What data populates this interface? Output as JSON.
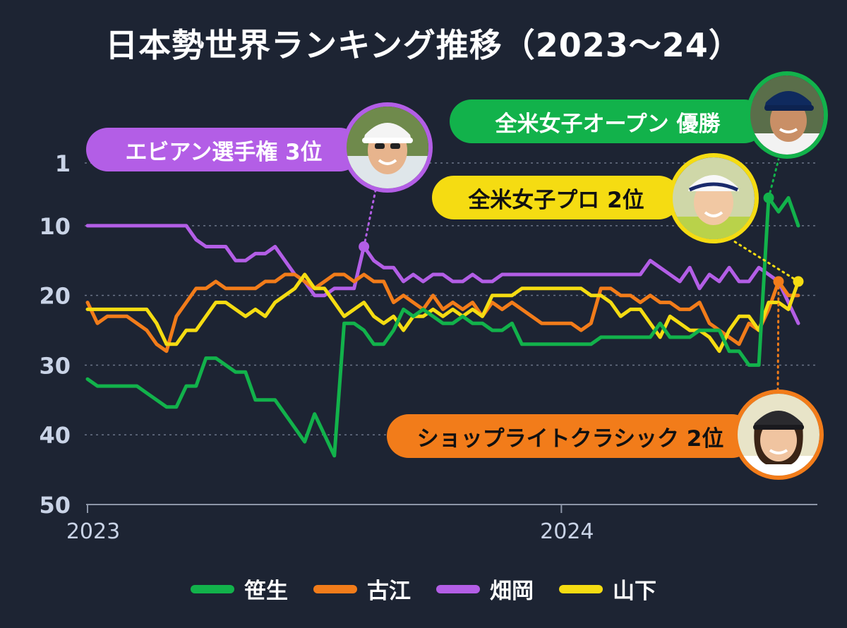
{
  "title": "日本勢世界ランキング推移（2023～24）",
  "chart_data": {
    "type": "line",
    "y_axis": {
      "ticks": [
        1,
        10,
        20,
        30,
        40,
        50
      ],
      "range": [
        1,
        50
      ],
      "inverted": true,
      "grid": "dotted"
    },
    "x_axis": {
      "ticks": [
        "2023",
        "2024"
      ],
      "range": [
        "2023-01",
        "2024-07"
      ]
    },
    "series": [
      {
        "name": "笹生",
        "color": "#12b24b",
        "values": [
          [
            0,
            32
          ],
          [
            1,
            33
          ],
          [
            2,
            33
          ],
          [
            3,
            33
          ],
          [
            4,
            33
          ],
          [
            5,
            33
          ],
          [
            6,
            34
          ],
          [
            7,
            35
          ],
          [
            8,
            36
          ],
          [
            9,
            36
          ],
          [
            10,
            33
          ],
          [
            11,
            33
          ],
          [
            12,
            29
          ],
          [
            13,
            29
          ],
          [
            14,
            30
          ],
          [
            15,
            31
          ],
          [
            16,
            31
          ],
          [
            17,
            35
          ],
          [
            18,
            35
          ],
          [
            19,
            35
          ],
          [
            20,
            37
          ],
          [
            21,
            39
          ],
          [
            22,
            41
          ],
          [
            23,
            37
          ],
          [
            24,
            40
          ],
          [
            25,
            43
          ],
          [
            26,
            24
          ],
          [
            27,
            24
          ],
          [
            28,
            25
          ],
          [
            29,
            27
          ],
          [
            30,
            27
          ],
          [
            31,
            25
          ],
          [
            32,
            22
          ],
          [
            33,
            23
          ],
          [
            34,
            22
          ],
          [
            35,
            23
          ],
          [
            36,
            24
          ],
          [
            37,
            24
          ],
          [
            38,
            23
          ],
          [
            39,
            24
          ],
          [
            40,
            24
          ],
          [
            41,
            25
          ],
          [
            42,
            25
          ],
          [
            43,
            24
          ],
          [
            44,
            27
          ],
          [
            45,
            27
          ],
          [
            46,
            27
          ],
          [
            47,
            27
          ],
          [
            48,
            27
          ],
          [
            49,
            27
          ],
          [
            50,
            27
          ],
          [
            51,
            27
          ],
          [
            52,
            26
          ],
          [
            53,
            26
          ],
          [
            54,
            26
          ],
          [
            55,
            26
          ],
          [
            56,
            26
          ],
          [
            57,
            26
          ],
          [
            58,
            24
          ],
          [
            59,
            26
          ],
          [
            60,
            26
          ],
          [
            61,
            26
          ],
          [
            62,
            25
          ],
          [
            63,
            25
          ],
          [
            64,
            25
          ],
          [
            65,
            28
          ],
          [
            66,
            28
          ],
          [
            67,
            30
          ],
          [
            68,
            30
          ],
          [
            69,
            6
          ],
          [
            70,
            8
          ],
          [
            71,
            6
          ],
          [
            72,
            10
          ]
        ]
      },
      {
        "name": "古江",
        "color": "#f27c1a",
        "values": [
          [
            0,
            21
          ],
          [
            1,
            24
          ],
          [
            2,
            23
          ],
          [
            3,
            23
          ],
          [
            4,
            23
          ],
          [
            5,
            24
          ],
          [
            6,
            25
          ],
          [
            7,
            27
          ],
          [
            8,
            28
          ],
          [
            9,
            23
          ],
          [
            10,
            21
          ],
          [
            11,
            19
          ],
          [
            12,
            19
          ],
          [
            13,
            18
          ],
          [
            14,
            19
          ],
          [
            15,
            19
          ],
          [
            16,
            19
          ],
          [
            17,
            19
          ],
          [
            18,
            18
          ],
          [
            19,
            18
          ],
          [
            20,
            17
          ],
          [
            21,
            17
          ],
          [
            22,
            18
          ],
          [
            23,
            19
          ],
          [
            24,
            18
          ],
          [
            25,
            17
          ],
          [
            26,
            17
          ],
          [
            27,
            18
          ],
          [
            28,
            17
          ],
          [
            29,
            18
          ],
          [
            30,
            18
          ],
          [
            31,
            21
          ],
          [
            32,
            20
          ],
          [
            33,
            21
          ],
          [
            34,
            22
          ],
          [
            35,
            20
          ],
          [
            36,
            22
          ],
          [
            37,
            21
          ],
          [
            38,
            22
          ],
          [
            39,
            21
          ],
          [
            40,
            23
          ],
          [
            41,
            21
          ],
          [
            42,
            22
          ],
          [
            43,
            21
          ],
          [
            44,
            22
          ],
          [
            45,
            23
          ],
          [
            46,
            24
          ],
          [
            47,
            24
          ],
          [
            48,
            24
          ],
          [
            49,
            24
          ],
          [
            50,
            25
          ],
          [
            51,
            24
          ],
          [
            52,
            19
          ],
          [
            53,
            19
          ],
          [
            54,
            20
          ],
          [
            55,
            20
          ],
          [
            56,
            21
          ],
          [
            57,
            20
          ],
          [
            58,
            21
          ],
          [
            59,
            21
          ],
          [
            60,
            22
          ],
          [
            61,
            22
          ],
          [
            62,
            21
          ],
          [
            63,
            24
          ],
          [
            64,
            25
          ],
          [
            65,
            26
          ],
          [
            66,
            27
          ],
          [
            67,
            24
          ],
          [
            68,
            25
          ],
          [
            69,
            22
          ],
          [
            70,
            18
          ],
          [
            71,
            20
          ],
          [
            72,
            20
          ]
        ]
      },
      {
        "name": "畑岡",
        "color": "#b35ee6",
        "values": [
          [
            0,
            10
          ],
          [
            1,
            10
          ],
          [
            2,
            10
          ],
          [
            3,
            10
          ],
          [
            4,
            10
          ],
          [
            5,
            10
          ],
          [
            6,
            10
          ],
          [
            7,
            10
          ],
          [
            8,
            10
          ],
          [
            9,
            10
          ],
          [
            10,
            10
          ],
          [
            11,
            12
          ],
          [
            12,
            13
          ],
          [
            13,
            13
          ],
          [
            14,
            13
          ],
          [
            15,
            15
          ],
          [
            16,
            15
          ],
          [
            17,
            14
          ],
          [
            18,
            14
          ],
          [
            19,
            13
          ],
          [
            20,
            15
          ],
          [
            21,
            17
          ],
          [
            22,
            18
          ],
          [
            23,
            20
          ],
          [
            24,
            20
          ],
          [
            25,
            19
          ],
          [
            26,
            19
          ],
          [
            27,
            19
          ],
          [
            28,
            13
          ],
          [
            29,
            15
          ],
          [
            30,
            16
          ],
          [
            31,
            16
          ],
          [
            32,
            18
          ],
          [
            33,
            17
          ],
          [
            34,
            18
          ],
          [
            35,
            17
          ],
          [
            36,
            17
          ],
          [
            37,
            18
          ],
          [
            38,
            18
          ],
          [
            39,
            17
          ],
          [
            40,
            18
          ],
          [
            41,
            18
          ],
          [
            42,
            17
          ],
          [
            43,
            17
          ],
          [
            44,
            17
          ],
          [
            45,
            17
          ],
          [
            46,
            17
          ],
          [
            47,
            17
          ],
          [
            48,
            17
          ],
          [
            49,
            17
          ],
          [
            50,
            17
          ],
          [
            51,
            17
          ],
          [
            52,
            17
          ],
          [
            53,
            17
          ],
          [
            54,
            17
          ],
          [
            55,
            17
          ],
          [
            56,
            17
          ],
          [
            57,
            15
          ],
          [
            58,
            16
          ],
          [
            59,
            17
          ],
          [
            60,
            18
          ],
          [
            61,
            16
          ],
          [
            62,
            19
          ],
          [
            63,
            17
          ],
          [
            64,
            18
          ],
          [
            65,
            16
          ],
          [
            66,
            18
          ],
          [
            67,
            18
          ],
          [
            68,
            16
          ],
          [
            69,
            17
          ],
          [
            70,
            18
          ],
          [
            71,
            21
          ],
          [
            72,
            24
          ]
        ]
      },
      {
        "name": "山下",
        "color": "#f5dc12",
        "values": [
          [
            0,
            22
          ],
          [
            1,
            22
          ],
          [
            2,
            22
          ],
          [
            3,
            22
          ],
          [
            4,
            22
          ],
          [
            5,
            22
          ],
          [
            6,
            22
          ],
          [
            7,
            24
          ],
          [
            8,
            27
          ],
          [
            9,
            27
          ],
          [
            10,
            25
          ],
          [
            11,
            25
          ],
          [
            12,
            23
          ],
          [
            13,
            21
          ],
          [
            14,
            21
          ],
          [
            15,
            22
          ],
          [
            16,
            23
          ],
          [
            17,
            22
          ],
          [
            18,
            23
          ],
          [
            19,
            21
          ],
          [
            20,
            20
          ],
          [
            21,
            19
          ],
          [
            22,
            17
          ],
          [
            23,
            19
          ],
          [
            24,
            19
          ],
          [
            25,
            21
          ],
          [
            26,
            23
          ],
          [
            27,
            22
          ],
          [
            28,
            21
          ],
          [
            29,
            23
          ],
          [
            30,
            24
          ],
          [
            31,
            23
          ],
          [
            32,
            25
          ],
          [
            33,
            23
          ],
          [
            34,
            23
          ],
          [
            35,
            22
          ],
          [
            36,
            23
          ],
          [
            37,
            22
          ],
          [
            38,
            23
          ],
          [
            39,
            22
          ],
          [
            40,
            23
          ],
          [
            41,
            20
          ],
          [
            42,
            20
          ],
          [
            43,
            20
          ],
          [
            44,
            19
          ],
          [
            45,
            19
          ],
          [
            46,
            19
          ],
          [
            47,
            19
          ],
          [
            48,
            19
          ],
          [
            49,
            19
          ],
          [
            50,
            19
          ],
          [
            51,
            20
          ],
          [
            52,
            20
          ],
          [
            53,
            21
          ],
          [
            54,
            23
          ],
          [
            55,
            22
          ],
          [
            56,
            22
          ],
          [
            57,
            24
          ],
          [
            58,
            26
          ],
          [
            59,
            23
          ],
          [
            60,
            24
          ],
          [
            61,
            25
          ],
          [
            62,
            25
          ],
          [
            63,
            26
          ],
          [
            64,
            28
          ],
          [
            65,
            25
          ],
          [
            66,
            23
          ],
          [
            67,
            23
          ],
          [
            68,
            25
          ],
          [
            69,
            21
          ],
          [
            70,
            21
          ],
          [
            71,
            22
          ],
          [
            72,
            18
          ]
        ]
      }
    ],
    "annotations": [
      {
        "label": "エビアン選手権 3位",
        "series": "畑岡",
        "point_index": 28,
        "color": "#b35ee6"
      },
      {
        "label": "全米女子オープン 優勝",
        "series": "笹生",
        "point_index": 69,
        "color": "#12b24b"
      },
      {
        "label": "全米女子プロ 2位",
        "series": "山下",
        "point_index": 72,
        "color": "#f5dc12"
      },
      {
        "label": "ショップライトクラシック 2位",
        "series": "古江",
        "point_index": 70,
        "color": "#f27c1a"
      }
    ]
  },
  "legend": [
    {
      "name": "笹生",
      "color": "#12b24b"
    },
    {
      "name": "古江",
      "color": "#f27c1a"
    },
    {
      "name": "畑岡",
      "color": "#b35ee6"
    },
    {
      "name": "山下",
      "color": "#f5dc12"
    }
  ]
}
